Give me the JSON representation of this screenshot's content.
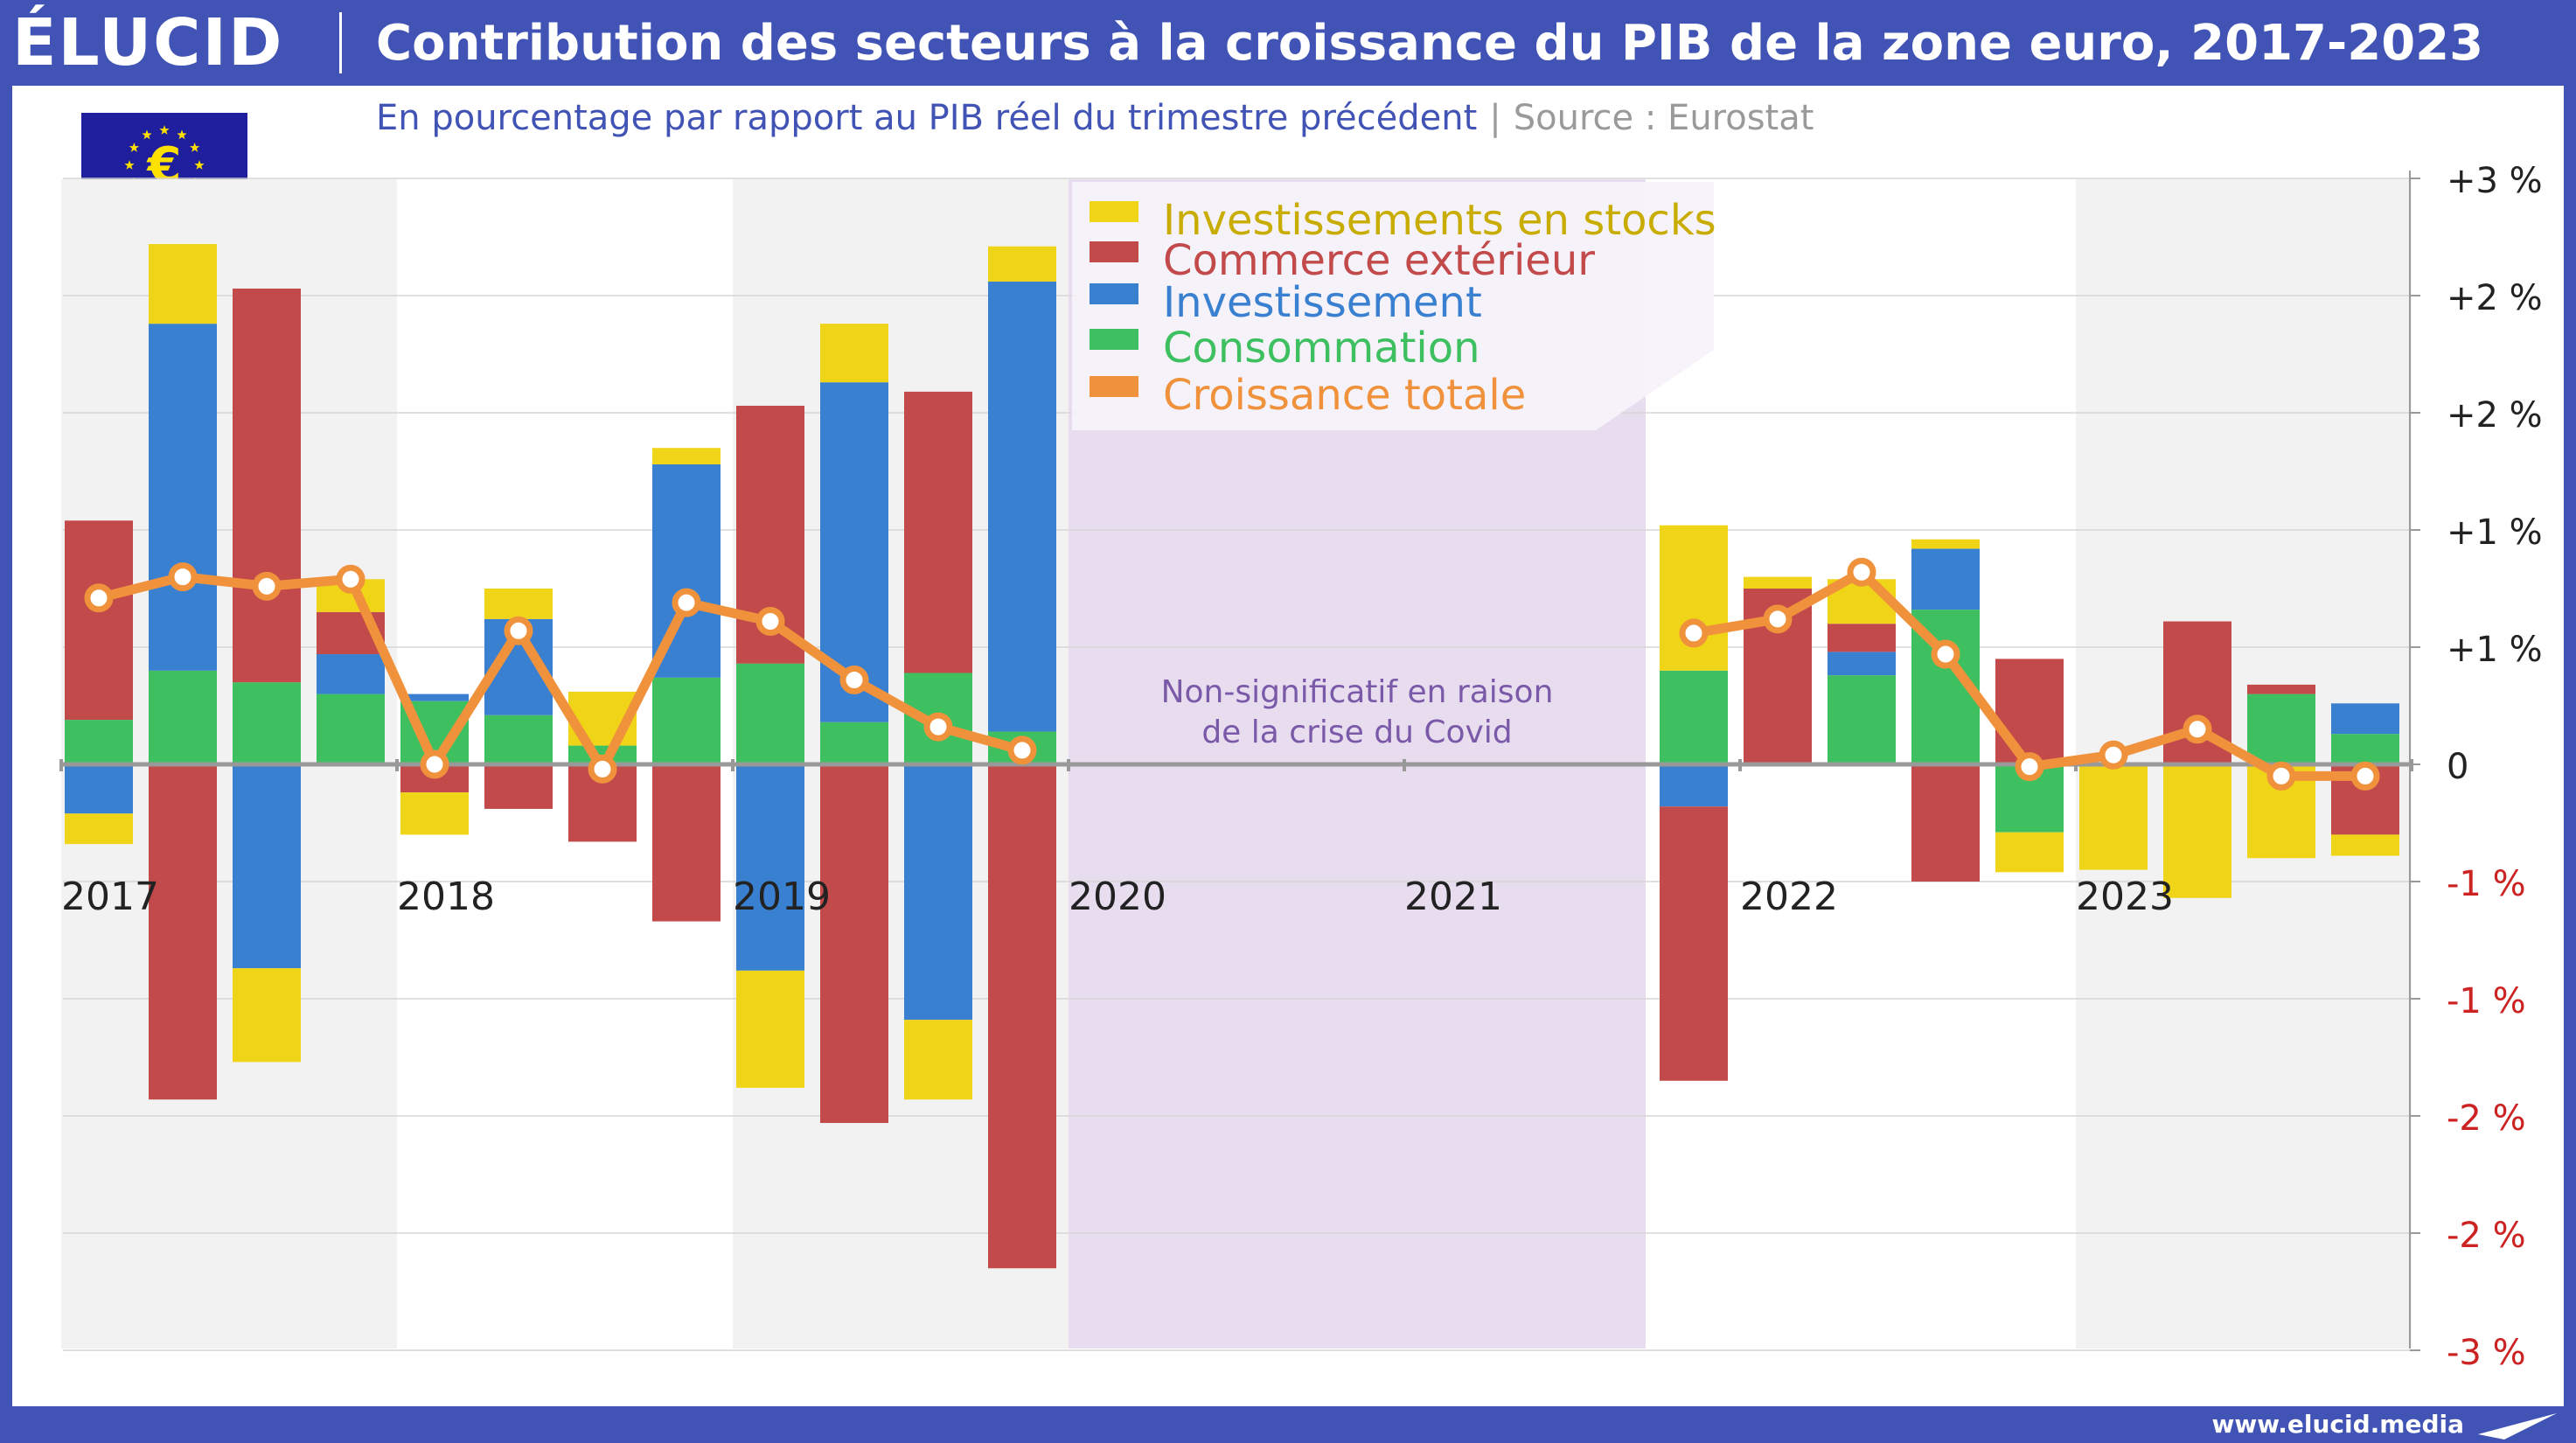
{
  "header": {
    "logo": "ÉLUCID",
    "title": "Contribution des secteurs à la croissance du PIB de la zone euro, 2017-2023",
    "subtitle": "En pourcentage par rapport au PIB réel du trimestre précédent",
    "source": "Source : Eurostat"
  },
  "footer": {
    "site": "www.elucid.media"
  },
  "colors": {
    "accent": "#4154b5",
    "stocks": "#f0d418",
    "commerce": "#c24a4a",
    "investissement": "#3a80d0",
    "consommation": "#3ec060",
    "croissance": "#f0923c",
    "negative_tick": "#cc2222",
    "covid_band": "#e8dcef"
  },
  "chart_data": {
    "type": "bar",
    "stacked": true,
    "ylim": [
      -2.5,
      2.5
    ],
    "y_ticks": [
      {
        "value": 2.5,
        "label": "+3 %"
      },
      {
        "value": 2.0,
        "label": "+2 %"
      },
      {
        "value": 1.5,
        "label": "+2 %"
      },
      {
        "value": 1.0,
        "label": "+1 %"
      },
      {
        "value": 0.5,
        "label": "+1 %"
      },
      {
        "value": 0.0,
        "label": "0"
      },
      {
        "value": -0.5,
        "label": "-1 %"
      },
      {
        "value": -1.0,
        "label": "-1 %"
      },
      {
        "value": -1.5,
        "label": "-2 %"
      },
      {
        "value": -2.0,
        "label": "-2 %"
      },
      {
        "value": -2.5,
        "label": "-3 %"
      }
    ],
    "x_labels": [
      "2017",
      "2018",
      "2019",
      "2020",
      "2021",
      "2022",
      "2023"
    ],
    "legend": [
      "Investissements en stocks",
      "Commerce extérieur",
      "Investissement",
      "Consommation",
      "Croissance totale"
    ],
    "annotation": [
      "Non-significatif en raison",
      "de la crise du Covid"
    ],
    "grid": true,
    "legend_position": "top-center",
    "covid_gap_quarters": 7,
    "quarters": [
      {
        "cons": 0.19,
        "inv": -0.21,
        "com": 0.85,
        "sto": -0.13,
        "total": 0.71
      },
      {
        "cons": 0.4,
        "inv": 1.48,
        "com": -1.43,
        "sto": 0.34,
        "total": 0.8
      },
      {
        "cons": 0.35,
        "inv": -0.87,
        "com": 1.68,
        "sto": -0.4,
        "total": 0.76
      },
      {
        "cons": 0.3,
        "inv": 0.17,
        "com": 0.18,
        "sto": 0.14,
        "total": 0.79
      },
      {
        "cons": 0.27,
        "inv": 0.03,
        "com": -0.12,
        "sto": -0.18,
        "total": 0.0
      },
      {
        "cons": 0.21,
        "inv": 0.41,
        "com": -0.19,
        "sto": 0.13,
        "total": 0.57
      },
      {
        "cons": 0.08,
        "inv": 0.0,
        "com": -0.33,
        "sto": 0.23,
        "total": -0.02
      },
      {
        "cons": 0.37,
        "inv": 0.91,
        "com": -0.67,
        "sto": 0.07,
        "total": 0.69
      },
      {
        "cons": 0.43,
        "inv": -0.88,
        "com": 1.1,
        "sto": -0.5,
        "total": 0.61
      },
      {
        "cons": 0.18,
        "inv": 1.45,
        "com": -1.53,
        "sto": 0.25,
        "total": 0.36
      },
      {
        "cons": 0.39,
        "inv": -1.09,
        "com": 1.2,
        "sto": -0.34,
        "total": 0.16
      },
      {
        "cons": 0.14,
        "inv": 1.92,
        "com": -2.15,
        "sto": 0.15,
        "total": 0.06
      },
      {
        "cons": 0.4,
        "inv": -0.18,
        "com": -1.17,
        "sto": 0.62,
        "total": 0.56
      },
      {
        "cons": 0.0,
        "inv": 0.0,
        "com": 0.75,
        "sto": 0.05,
        "total": 0.62
      },
      {
        "cons": 0.38,
        "inv": 0.1,
        "com": 0.12,
        "sto": 0.19,
        "total": 0.82
      },
      {
        "cons": 0.66,
        "inv": 0.26,
        "com": -0.5,
        "sto": 0.04,
        "total": 0.47
      },
      {
        "cons": -0.29,
        "inv": 0.0,
        "com": 0.45,
        "sto": -0.17,
        "total": -0.01
      },
      {
        "cons": 0.0,
        "inv": 0.0,
        "com": 0.0,
        "sto": -0.45,
        "total": 0.04
      },
      {
        "cons": 0.0,
        "inv": 0.0,
        "com": 0.61,
        "sto": -0.57,
        "total": 0.15
      },
      {
        "cons": 0.3,
        "inv": 0.0,
        "com": 0.04,
        "sto": -0.4,
        "total": -0.05
      },
      {
        "cons": 0.13,
        "inv": 0.13,
        "com": -0.3,
        "sto": -0.09,
        "total": -0.05
      }
    ]
  }
}
